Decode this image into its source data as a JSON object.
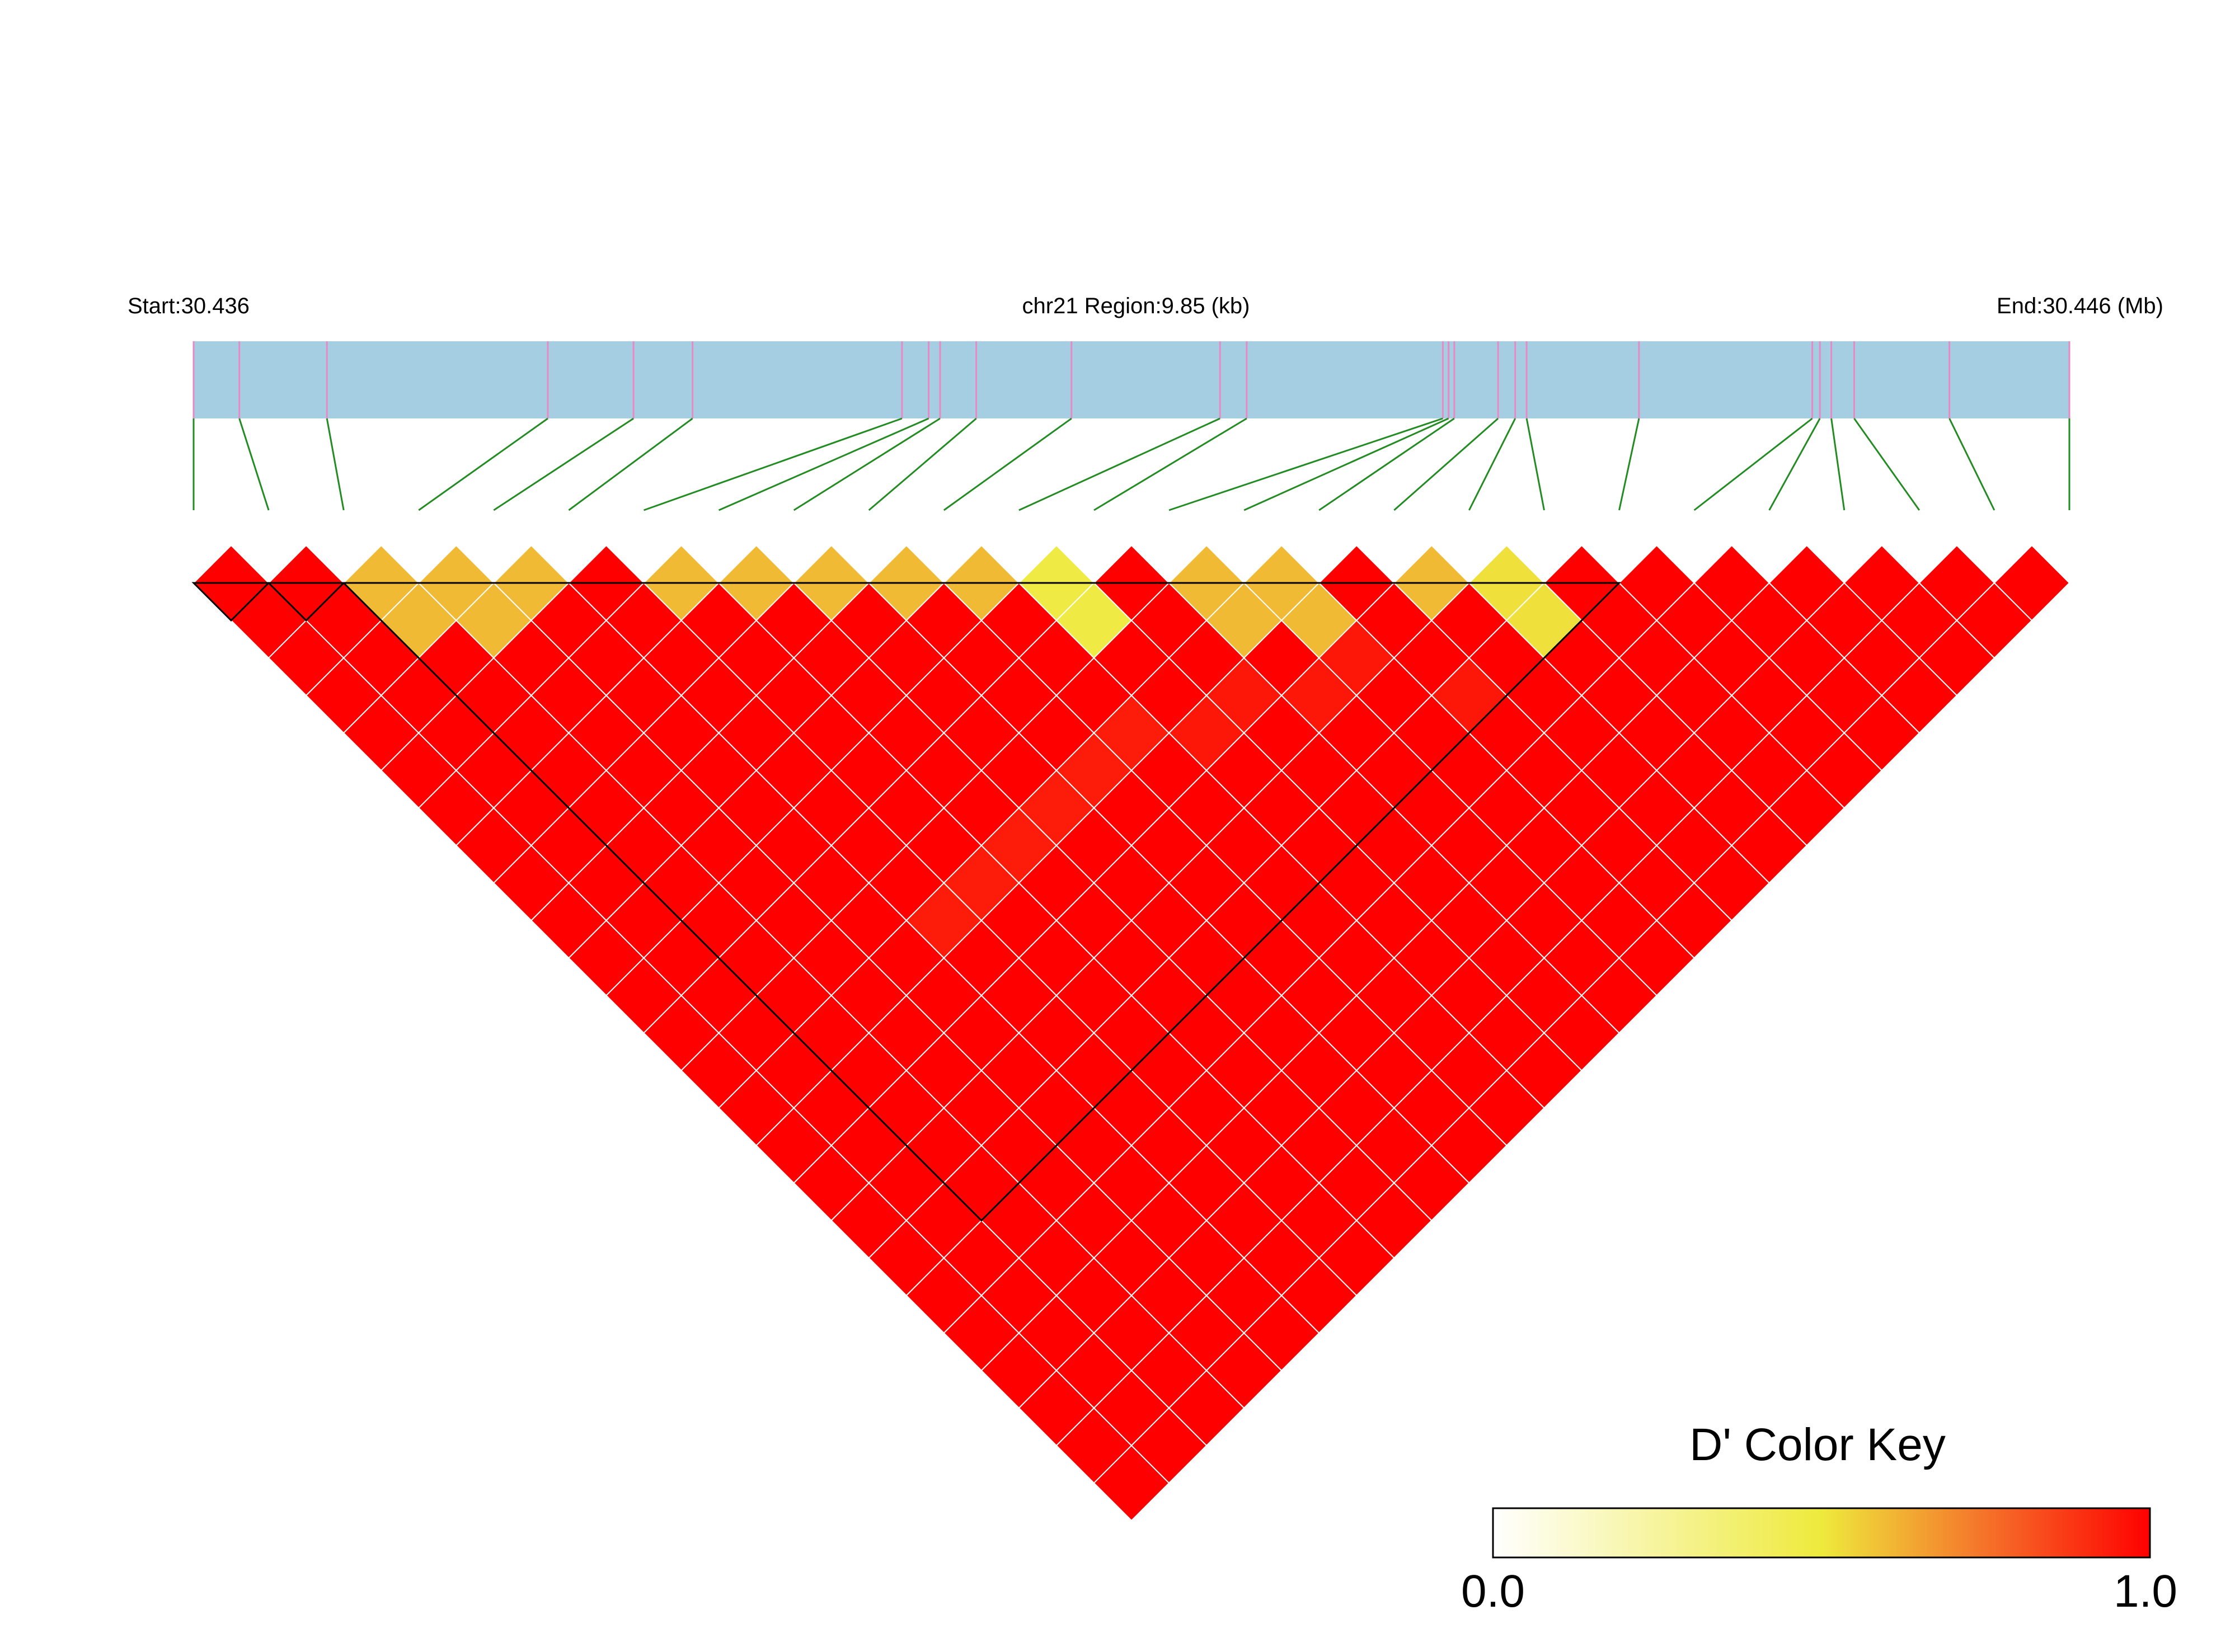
{
  "header": {
    "start_label": "Start:30.436",
    "region_label": "chr21 Region:9.85 (kb)",
    "end_label": "End:30.446 (Mb)"
  },
  "colors": {
    "region_bar": "#a6cee3",
    "snp_tick": "#e78ac3",
    "connector": "#228b22",
    "cell_border": "#ffffff",
    "block_outline": "#000000"
  },
  "chart_data": {
    "type": "heatmap",
    "title": "",
    "region": {
      "chromosome": "chr21",
      "start_mb": 30.436,
      "end_mb": 30.446,
      "length_kb": 9.85
    },
    "n_snps": 26,
    "snp_positions_kb": [
      0,
      0.24,
      0.7,
      1.86,
      2.31,
      2.62,
      3.72,
      3.86,
      3.92,
      4.11,
      4.61,
      5.39,
      5.53,
      6.56,
      6.59,
      6.62,
      6.85,
      6.94,
      7.0,
      7.59,
      8.5,
      8.54,
      8.6,
      8.72,
      9.22,
      9.85
    ],
    "value_label": "D'",
    "default_value": 1.0,
    "cells": [
      {
        "snp_i": 2,
        "snp_j": 3,
        "value": 0.6
      },
      {
        "snp_i": 2,
        "snp_j": 4,
        "value": 0.6
      },
      {
        "snp_i": 3,
        "snp_j": 4,
        "value": 0.6
      },
      {
        "snp_i": 3,
        "snp_j": 5,
        "value": 0.6
      },
      {
        "snp_i": 4,
        "snp_j": 5,
        "value": 0.6
      },
      {
        "snp_i": 6,
        "snp_j": 7,
        "value": 0.6
      },
      {
        "snp_i": 7,
        "snp_j": 8,
        "value": 0.6
      },
      {
        "snp_i": 8,
        "snp_j": 9,
        "value": 0.6
      },
      {
        "snp_i": 9,
        "snp_j": 10,
        "value": 0.6
      },
      {
        "snp_i": 10,
        "snp_j": 11,
        "value": 0.6
      },
      {
        "snp_i": 11,
        "snp_j": 12,
        "value": 0.48
      },
      {
        "snp_i": 11,
        "snp_j": 13,
        "value": 0.48
      },
      {
        "snp_i": 13,
        "snp_j": 14,
        "value": 0.6
      },
      {
        "snp_i": 13,
        "snp_j": 15,
        "value": 0.6
      },
      {
        "snp_i": 14,
        "snp_j": 15,
        "value": 0.6
      },
      {
        "snp_i": 14,
        "snp_j": 16,
        "value": 0.6
      },
      {
        "snp_i": 16,
        "snp_j": 17,
        "value": 0.6
      },
      {
        "snp_i": 17,
        "snp_j": 18,
        "value": 0.52
      },
      {
        "snp_i": 17,
        "snp_j": 19,
        "value": 0.52
      },
      {
        "snp_i": 5,
        "snp_j": 15,
        "value": 0.94
      },
      {
        "snp_i": 6,
        "snp_j": 15,
        "value": 0.94
      },
      {
        "snp_i": 7,
        "snp_j": 15,
        "value": 0.94
      },
      {
        "snp_i": 8,
        "snp_j": 15,
        "value": 0.94
      },
      {
        "snp_i": 9,
        "snp_j": 15,
        "value": 0.94
      },
      {
        "snp_i": 10,
        "snp_j": 15,
        "value": 0.94
      },
      {
        "snp_i": 11,
        "snp_j": 16,
        "value": 0.95
      },
      {
        "snp_i": 12,
        "snp_j": 16,
        "value": 0.95
      },
      {
        "snp_i": 13,
        "snp_j": 17,
        "value": 0.95
      },
      {
        "snp_i": 14,
        "snp_j": 17,
        "value": 0.95
      },
      {
        "snp_i": 15,
        "snp_j": 19,
        "value": 0.95
      }
    ],
    "blocks": [
      {
        "snps": [
          0,
          1
        ]
      },
      {
        "snps": [
          1,
          2
        ]
      },
      {
        "snps": [
          2,
          19
        ]
      }
    ],
    "legend": {
      "title": "D' Color Key",
      "min_label": "0.0",
      "max_label": "1.0",
      "stops": [
        {
          "value": 0.0,
          "color": "#ffffff"
        },
        {
          "value": 0.5,
          "color": "#eeea3c"
        },
        {
          "value": 0.75,
          "color": "#f5722a"
        },
        {
          "value": 1.0,
          "color": "#ff0000"
        }
      ],
      "placement": "bottom-right"
    }
  }
}
